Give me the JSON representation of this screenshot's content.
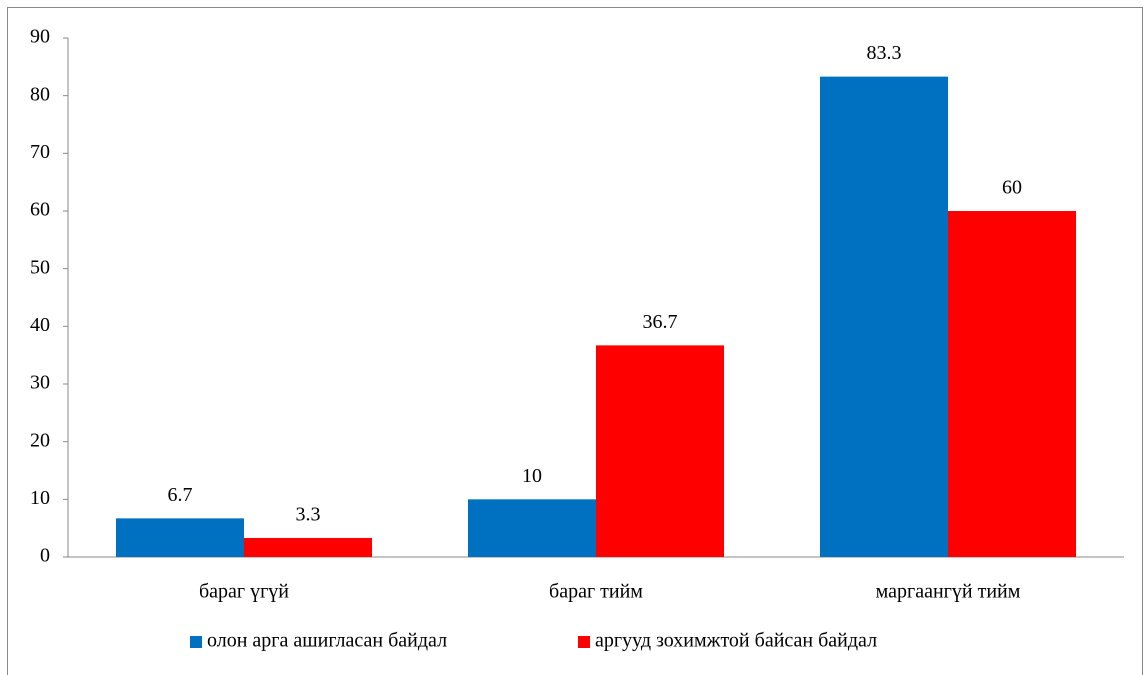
{
  "chart_data": {
    "type": "bar",
    "categories": [
      "бараг үгүй",
      "бараг тийм",
      "маргаангүй тийм"
    ],
    "series": [
      {
        "name": "олон арга ашигласан байдал",
        "color": "#0070c0",
        "values": [
          6.7,
          10,
          83.3
        ]
      },
      {
        "name": "аргууд зохимжтой байсан байдал",
        "color": "#ff0000",
        "values": [
          3.3,
          36.7,
          60
        ]
      }
    ],
    "ylim": [
      0,
      90
    ],
    "yticks": [
      0,
      10,
      20,
      30,
      40,
      50,
      60,
      70,
      80,
      90
    ],
    "grid": false,
    "legend": "bottom"
  }
}
